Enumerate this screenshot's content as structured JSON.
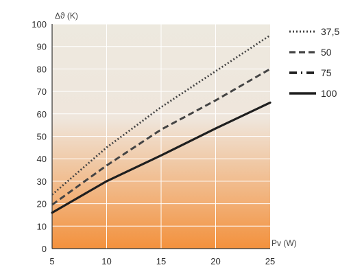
{
  "chart_data": {
    "type": "line",
    "title": "",
    "xlabel": "Pv (W)",
    "ylabel": "Δϑ (K)",
    "xlim": [
      5,
      25
    ],
    "ylim": [
      0,
      100
    ],
    "x_ticks": [
      5,
      10,
      15,
      20,
      25
    ],
    "y_ticks": [
      0,
      10,
      20,
      30,
      40,
      50,
      60,
      70,
      80,
      90,
      100
    ],
    "grid": true,
    "legend_position": "right",
    "colors": {
      "plot_top": "#ede9df",
      "plot_bottom": "#f3913d",
      "grid": "#ffffff",
      "line_dark": "#1f1f1f",
      "line_gray": "#444444"
    },
    "series": [
      {
        "name": "37,5",
        "style": "dotted",
        "x": [
          5,
          10,
          15,
          20,
          25
        ],
        "y": [
          24,
          45,
          63,
          79,
          95
        ]
      },
      {
        "name": "50",
        "style": "dashed",
        "x": [
          5,
          10,
          15,
          20,
          25
        ],
        "y": [
          19.5,
          37,
          53,
          66,
          80
        ]
      },
      {
        "name": "75",
        "style": "dash-dot",
        "x": [],
        "y": []
      },
      {
        "name": "100",
        "style": "solid",
        "x": [
          5,
          10,
          15,
          20,
          25
        ],
        "y": [
          16,
          30,
          41.5,
          53.5,
          65
        ]
      }
    ]
  }
}
